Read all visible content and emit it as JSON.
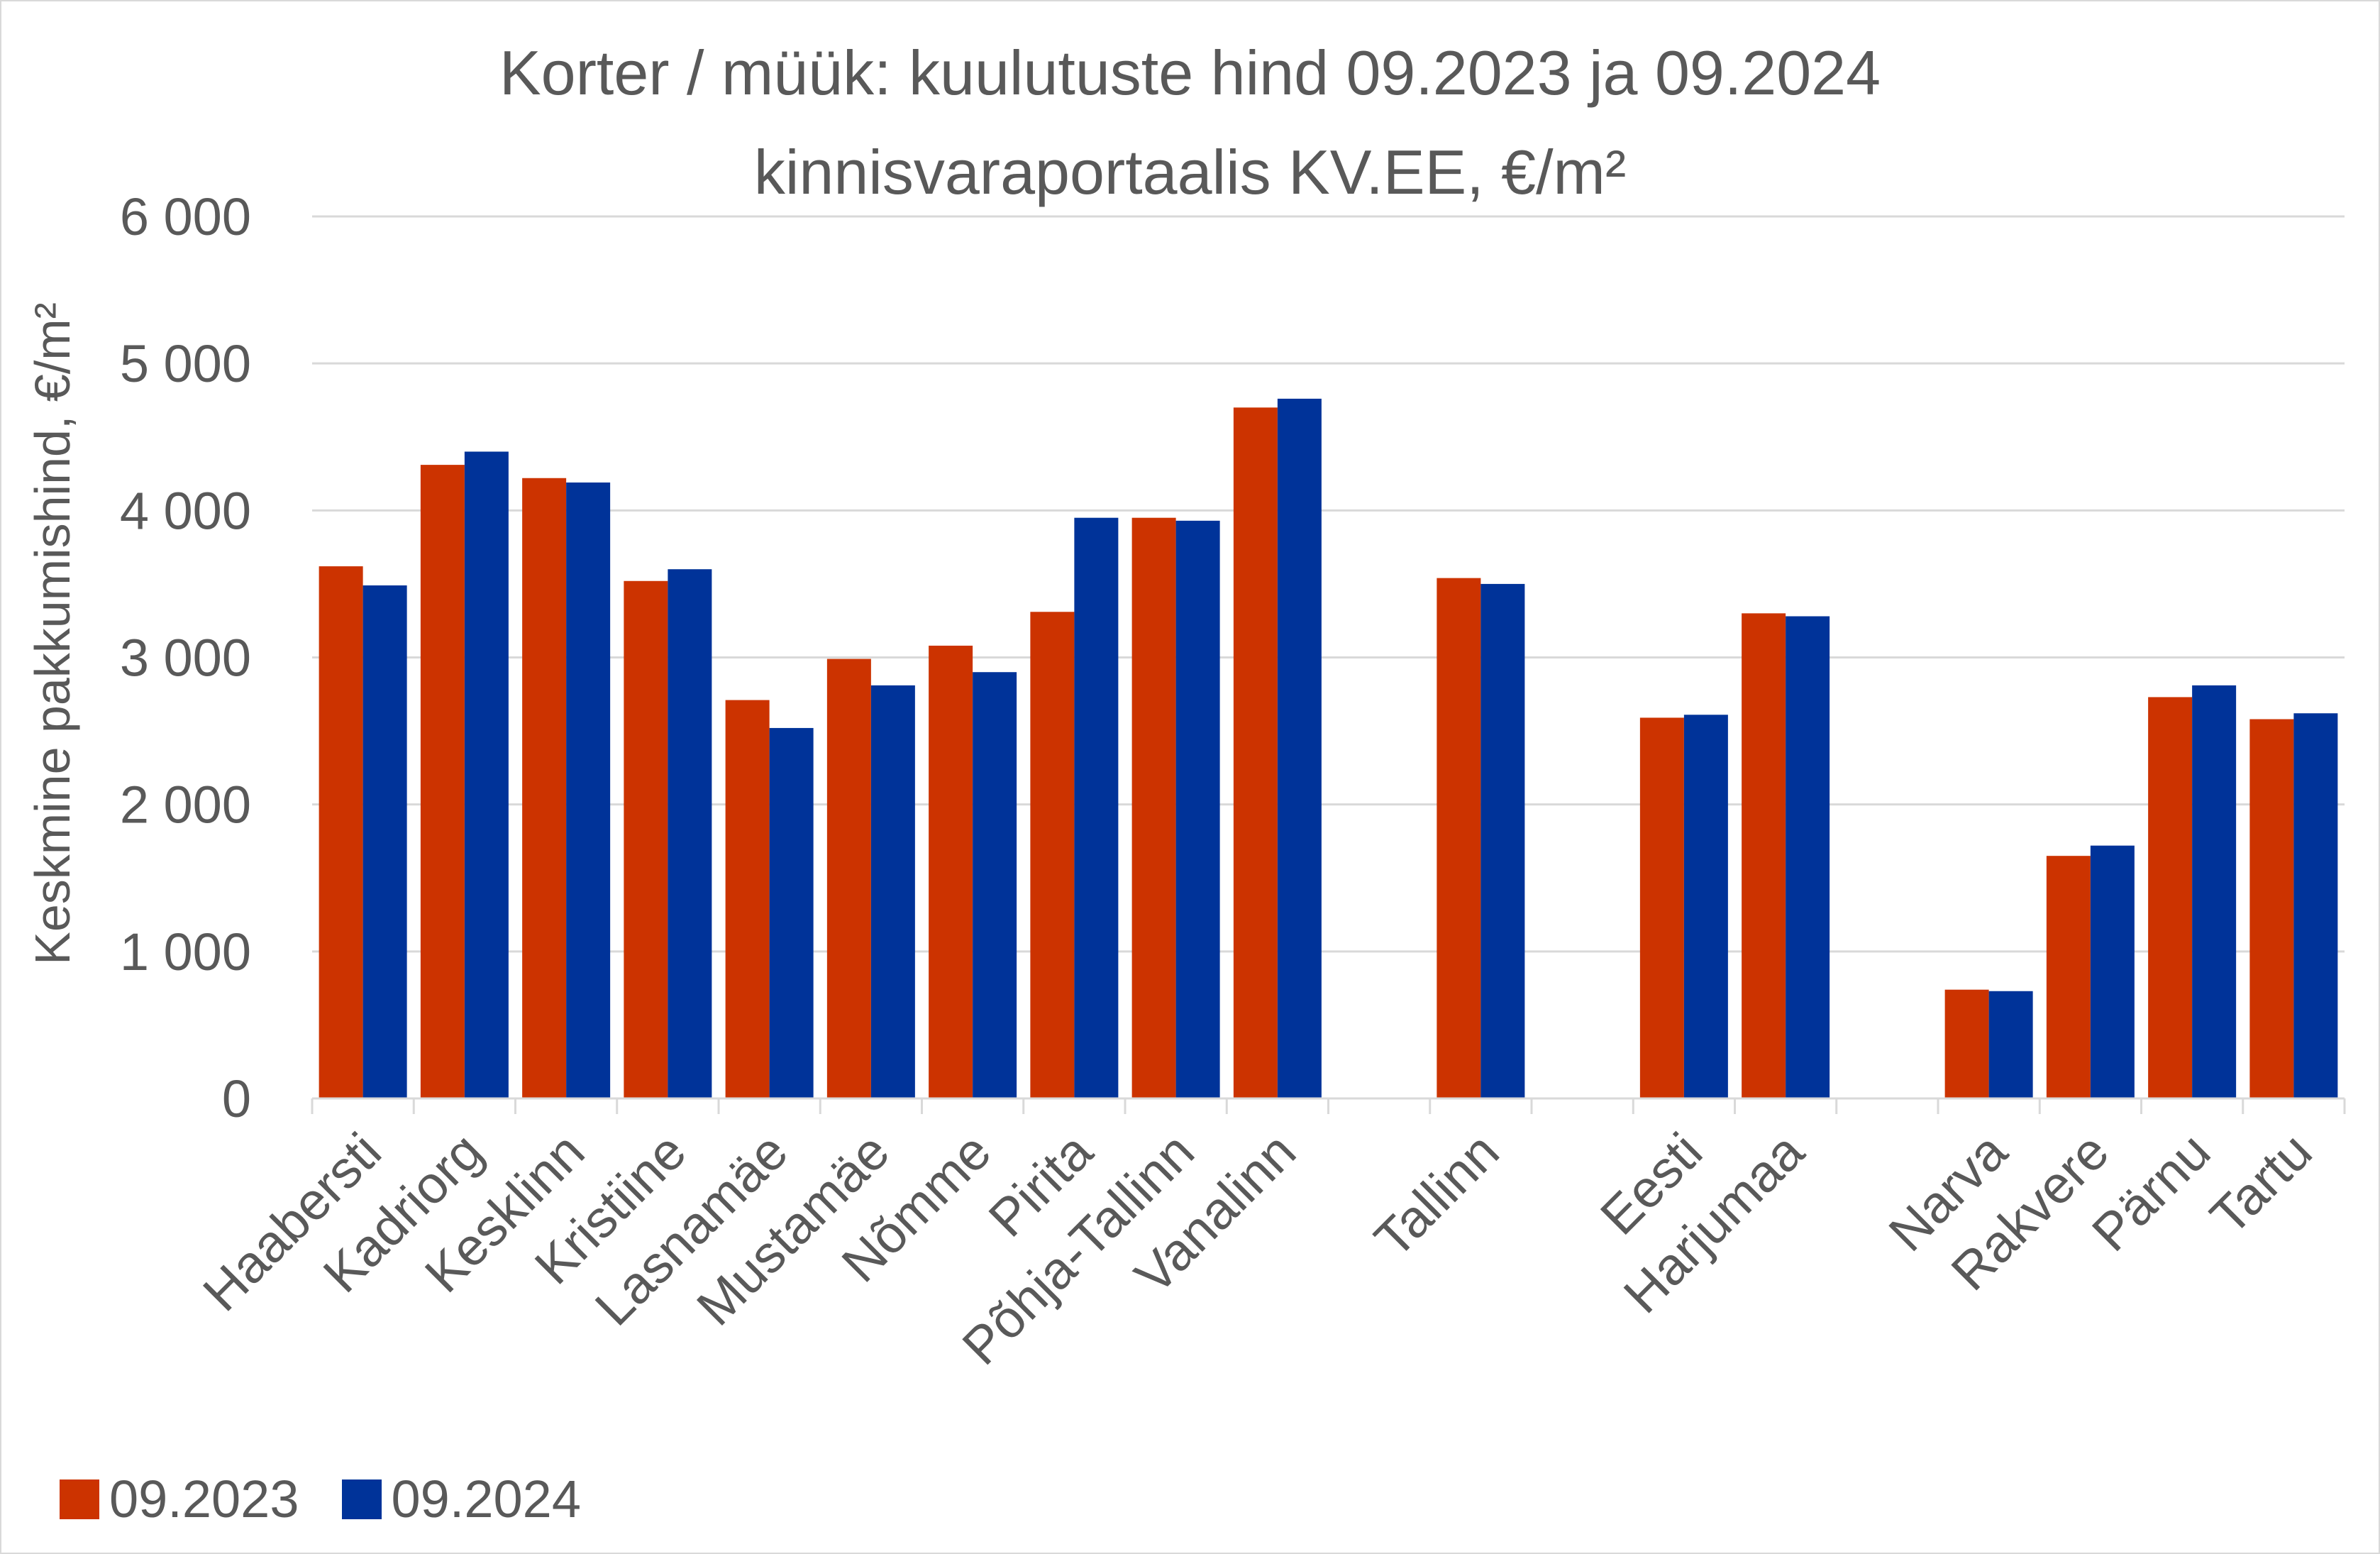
{
  "chart_data": {
    "type": "bar",
    "title": "Korter / müük: kuulutuste hind 09.2023 ja 09.2024",
    "subtitle": "kinnisvaraportaalis KV.EE, €/m²",
    "ylabel": "Keskmine pakkumishind, €/m²",
    "xlabel": "",
    "ylim": [
      0,
      6000
    ],
    "yticks": [
      0,
      1000,
      2000,
      3000,
      4000,
      5000,
      6000
    ],
    "ytick_labels": [
      "0",
      "1 000",
      "2 000",
      "3 000",
      "4 000",
      "5 000",
      "6 000"
    ],
    "grid": true,
    "legend_position": "bottom-left",
    "categories": [
      "Haabersti",
      "Kadriorg",
      "Kesklinn",
      "Kristiine",
      "Lasnamäe",
      "Mustamäe",
      "Nõmme",
      "Pirita",
      "Põhja-Tallinn",
      "Vanalinn",
      "",
      "Tallinn",
      "",
      "Eesti",
      "Harjumaa",
      "",
      "Narva",
      "Rakvere",
      "Pärnu",
      "Tartu"
    ],
    "series": [
      {
        "name": "09.2023",
        "color": "#cc3300",
        "values": [
          3620,
          4310,
          4220,
          3520,
          2710,
          2990,
          3080,
          3310,
          3950,
          4700,
          null,
          3540,
          null,
          2590,
          3300,
          null,
          740,
          1650,
          2730,
          2580
        ]
      },
      {
        "name": "09.2024",
        "color": "#003399",
        "values": [
          3490,
          4400,
          4190,
          3600,
          2520,
          2810,
          2900,
          3950,
          3930,
          4760,
          null,
          3500,
          null,
          2610,
          3280,
          null,
          730,
          1720,
          2810,
          2620
        ]
      }
    ]
  }
}
